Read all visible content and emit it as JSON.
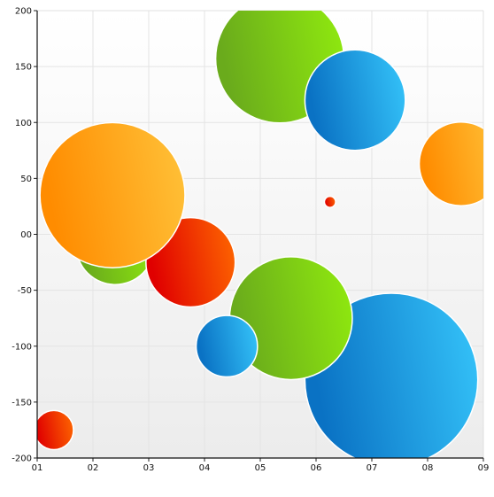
{
  "chart_data": {
    "type": "bubble",
    "title": "",
    "xlabel": "",
    "ylabel": "",
    "xlim": [
      1,
      9
    ],
    "ylim": [
      -200,
      200
    ],
    "x_ticks": [
      "01",
      "02",
      "03",
      "04",
      "05",
      "06",
      "07",
      "08",
      "09"
    ],
    "y_ticks": [
      "200",
      "150",
      "100",
      "50",
      "00",
      "-50",
      "-100",
      "-150",
      "-200"
    ],
    "grid": true,
    "legend": "none",
    "series": [
      {
        "color_dark": "#e00000",
        "color_light": "#ff6a00",
        "points": [
          {
            "x": 3.75,
            "y": -25,
            "r": 0.8
          },
          {
            "x": 6.25,
            "y": 29,
            "r": 0.1
          },
          {
            "x": 1.3,
            "y": -175,
            "r": 0.35
          }
        ]
      },
      {
        "color_dark": "#ff8c00",
        "color_light": "#ffc33a",
        "points": [
          {
            "x": 2.35,
            "y": 35,
            "r": 1.3
          },
          {
            "x": 8.6,
            "y": 63,
            "r": 0.75
          }
        ]
      },
      {
        "color_dark": "#6aab1c",
        "color_light": "#91ec0e",
        "points": [
          {
            "x": 5.35,
            "y": 157,
            "r": 1.15
          },
          {
            "x": 5.55,
            "y": -75,
            "r": 1.1
          },
          {
            "x": 2.4,
            "y": -10,
            "r": 0.7
          }
        ]
      },
      {
        "color_dark": "#0a72c4",
        "color_light": "#36c6fb",
        "points": [
          {
            "x": 7.35,
            "y": -130,
            "r": 1.55
          },
          {
            "x": 6.7,
            "y": 120,
            "r": 0.9
          },
          {
            "x": 4.4,
            "y": -100,
            "r": 0.55
          }
        ]
      }
    ]
  }
}
